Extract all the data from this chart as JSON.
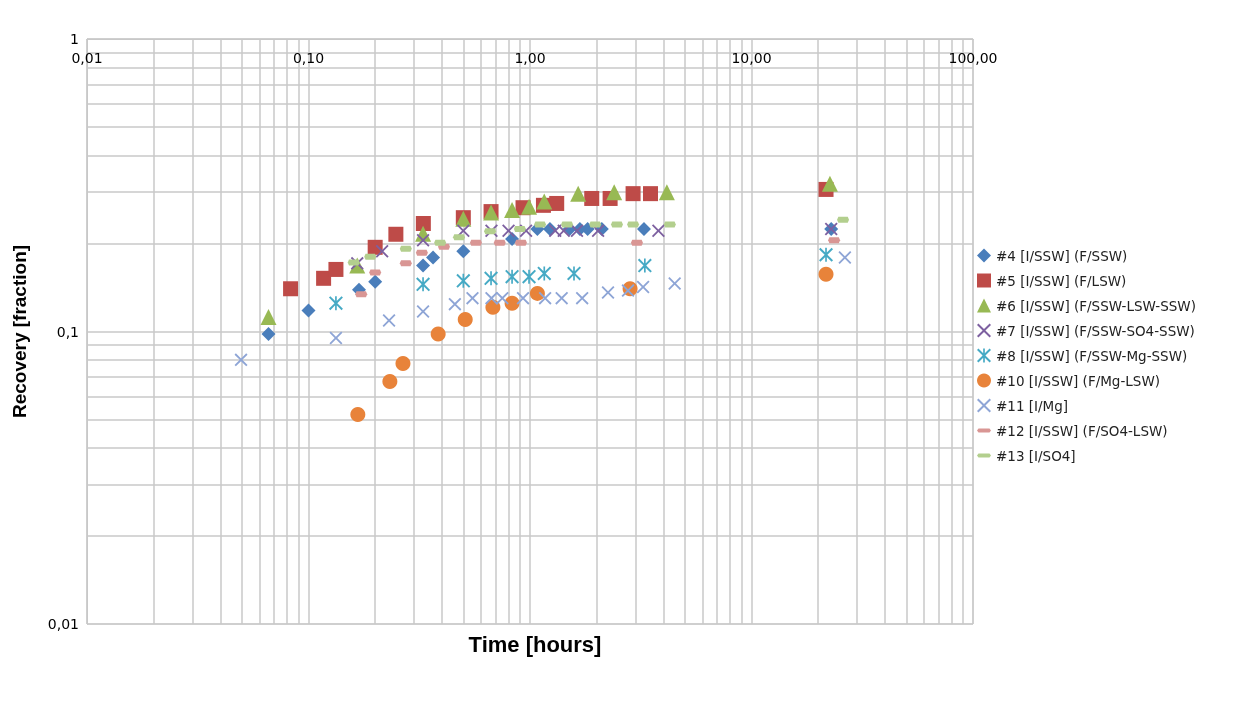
{
  "chart_data": {
    "type": "scatter",
    "xlabel": "Time [hours]",
    "ylabel": "Recovery [fraction]",
    "log": "xy",
    "grid": true,
    "legend": "right",
    "xlim": [
      0.01,
      100
    ],
    "xticks": [
      {
        "value": 0.01,
        "label": "0,01"
      },
      {
        "value": 0.1,
        "label": "0,10"
      },
      {
        "value": 1,
        "label": "1,00"
      },
      {
        "value": 10,
        "label": "10,00"
      },
      {
        "value": 100,
        "label": "100,00"
      }
    ],
    "ylim": [
      0.01,
      1
    ],
    "yticks": [
      {
        "value": 0.01,
        "label": "0,01"
      },
      {
        "value": 0.1,
        "label": "0,1"
      },
      1
    ],
    "series": [
      {
        "name": "#4 [I/SSW] (F/SSW)",
        "color": "#4a7ebb",
        "marker": "diamond",
        "x": [
          0.066,
          0.1,
          0.169,
          0.2,
          0.329,
          0.365,
          0.5,
          0.83,
          1.08,
          1.23,
          1.51,
          1.68,
          1.82,
          2.11,
          3.27,
          22.9
        ],
        "values": [
          0.098,
          0.118,
          0.139,
          0.148,
          0.168,
          0.179,
          0.188,
          0.207,
          0.224,
          0.224,
          0.224,
          0.224,
          0.224,
          0.224,
          0.224,
          0.224
        ]
      },
      {
        "name": "#5 [I/SSW] (F/LSW)",
        "color": "#be4b48",
        "marker": "square",
        "x": [
          0.083,
          0.117,
          0.133,
          0.2,
          0.248,
          0.33,
          0.5,
          0.667,
          0.93,
          1.15,
          1.32,
          1.9,
          2.3,
          2.92,
          3.5,
          21.7
        ],
        "values": [
          0.14,
          0.152,
          0.163,
          0.194,
          0.215,
          0.234,
          0.245,
          0.257,
          0.265,
          0.27,
          0.274,
          0.285,
          0.285,
          0.296,
          0.296,
          0.306
        ]
      },
      {
        "name": "#6 [I/SSW] (F/SSW-LSW-SSW)",
        "color": "#98b954",
        "marker": "triangle",
        "x": [
          0.066,
          0.166,
          0.329,
          0.5,
          0.667,
          0.83,
          0.99,
          1.16,
          1.65,
          2.4,
          4.15,
          22.6
        ],
        "values": [
          0.112,
          0.168,
          0.216,
          0.243,
          0.255,
          0.26,
          0.267,
          0.278,
          0.296,
          0.299,
          0.299,
          0.32
        ]
      },
      {
        "name": "#7 [I/SSW] (F/SSW-SO4-SSW)",
        "color": "#7d60a0",
        "marker": "cross",
        "x": [
          0.166,
          0.215,
          0.329,
          0.5,
          0.67,
          0.8,
          0.96,
          1.3,
          1.42,
          1.63,
          2.03,
          3.8,
          22.9
        ],
        "values": [
          0.171,
          0.188,
          0.205,
          0.221,
          0.221,
          0.221,
          0.221,
          0.221,
          0.221,
          0.221,
          0.221,
          0.221,
          0.224
        ]
      },
      {
        "name": "#8 [I/SSW] (F/SSW-Mg-SSW)",
        "color": "#46aac5",
        "marker": "star",
        "x": [
          0.133,
          0.329,
          0.5,
          0.667,
          0.83,
          0.99,
          1.16,
          1.58,
          3.3,
          21.7
        ],
        "values": [
          0.125,
          0.145,
          0.149,
          0.152,
          0.154,
          0.154,
          0.158,
          0.158,
          0.168,
          0.183
        ]
      },
      {
        "name": "#10 [I/SSW] (F/Mg-LSW)",
        "color": "#e8833a",
        "marker": "circle",
        "x": [
          0.167,
          0.233,
          0.267,
          0.385,
          0.51,
          0.68,
          0.83,
          1.08,
          2.83,
          21.7
        ],
        "values": [
          0.052,
          0.0675,
          0.0777,
          0.098,
          0.11,
          0.121,
          0.125,
          0.135,
          0.14,
          0.157
        ]
      },
      {
        "name": "#11 [I/Mg]",
        "color": "#8ea5d6",
        "marker": "cross",
        "x": [
          0.0496,
          0.133,
          0.231,
          0.329,
          0.458,
          0.55,
          0.67,
          0.75,
          0.93,
          1.17,
          1.39,
          1.72,
          2.25,
          2.77,
          3.24,
          4.5,
          26.4
        ],
        "values": [
          0.08,
          0.095,
          0.109,
          0.117,
          0.124,
          0.13,
          0.13,
          0.13,
          0.13,
          0.13,
          0.13,
          0.13,
          0.136,
          0.138,
          0.142,
          0.146,
          0.179
        ]
      },
      {
        "name": "#12 [I/SSW] (F/SO4-LSW)",
        "color": "#d99694",
        "x": [
          0.173,
          0.2,
          0.275,
          0.325,
          0.409,
          0.57,
          0.73,
          0.91,
          3.04,
          23.6
        ],
        "values": [
          0.134,
          0.159,
          0.171,
          0.186,
          0.195,
          0.201,
          0.201,
          0.201,
          0.201,
          0.205
        ]
      },
      {
        "name": "#13 [I/SO4]",
        "color": "#b3cf8e",
        "x": [
          0.16,
          0.19,
          0.275,
          0.393,
          0.478,
          0.66,
          0.9,
          1.11,
          1.47,
          1.97,
          2.47,
          2.92,
          4.28,
          25.9
        ],
        "values": [
          0.172,
          0.18,
          0.192,
          0.201,
          0.21,
          0.22,
          0.224,
          0.232,
          0.232,
          0.232,
          0.232,
          0.232,
          0.232,
          0.241
        ]
      }
    ]
  }
}
